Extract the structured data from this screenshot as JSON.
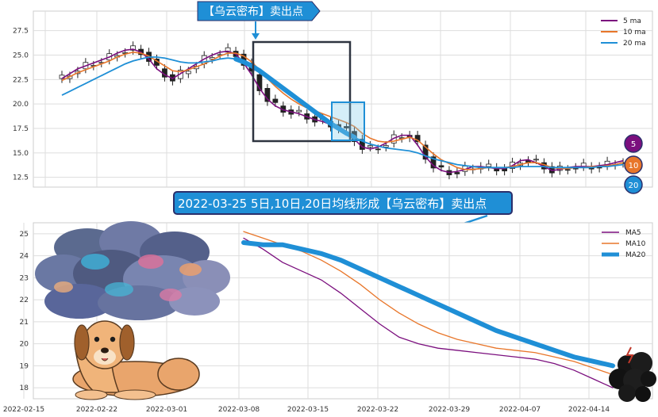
{
  "colors": {
    "ma5": "#7b0f7e",
    "ma10": "#e8762a",
    "ma20": "#1f8fd6",
    "candle_up": "#ffffff",
    "candle_down": "#222222",
    "callout_bg": "#1f8fd6",
    "callout_border": "#2b2f6b",
    "grid": "#dddddd"
  },
  "callouts": {
    "top_label": "【乌云密布】卖出点",
    "middle_label": "2022-03-25 5日,10日,20日均线形成【乌云密布】卖出点"
  },
  "badges": [
    "5",
    "10",
    "20"
  ],
  "icons": {
    "storm_cloud": "storm-cloud-icon",
    "dog": "dog-icon",
    "dark_cloud": "dark-cloud-icon"
  },
  "chart_data": [
    {
      "type": "candlestick",
      "title": "",
      "y_ticks": [
        "12.5",
        "15.0",
        "17.5",
        "20.0",
        "22.5",
        "25.0",
        "27.5"
      ],
      "ylim": [
        11.5,
        29.5
      ],
      "grid": true,
      "legend_placement": "top-right",
      "legend": [
        "5 ma",
        "10 ma",
        "20 ma"
      ],
      "series": [
        {
          "name": "5 ma",
          "values": [
            22.6,
            23.1,
            23.6,
            23.9,
            24.2,
            24.5,
            24.8,
            25.2,
            25.5,
            25.6,
            25.3,
            24.6,
            23.6,
            23.0,
            22.6,
            23.1,
            23.6,
            24.1,
            24.6,
            25.0,
            25.3,
            25.4,
            25.1,
            24.2,
            23.0,
            21.6,
            20.5,
            19.8,
            19.4,
            19.2,
            19.0,
            18.7,
            18.4,
            18.2,
            17.9,
            17.7,
            17.2,
            16.4,
            15.6,
            15.4,
            15.6,
            16.0,
            16.5,
            16.8,
            16.8,
            15.8,
            14.6,
            13.7,
            13.2,
            13.0,
            13.1,
            13.3,
            13.6,
            13.6,
            13.5,
            13.4,
            13.4,
            13.7,
            14.2,
            14.3,
            14.0,
            13.6,
            13.2,
            13.3,
            13.5,
            13.6,
            13.6,
            13.6,
            13.7,
            13.8,
            14.0,
            14.2
          ]
        },
        {
          "name": "10 ma",
          "values": [
            22.4,
            22.8,
            23.2,
            23.5,
            23.8,
            24.1,
            24.4,
            24.8,
            25.1,
            25.3,
            25.2,
            24.9,
            24.4,
            23.9,
            23.4,
            23.3,
            23.5,
            23.8,
            24.1,
            24.5,
            24.9,
            25.2,
            25.2,
            24.9,
            24.3,
            23.5,
            22.6,
            21.8,
            21.1,
            20.5,
            20.0,
            19.6,
            19.3,
            19.0,
            18.7,
            18.4,
            18.1,
            17.7,
            17.0,
            16.5,
            16.2,
            16.1,
            16.2,
            16.4,
            16.6,
            16.3,
            15.6,
            14.9,
            14.3,
            13.9,
            13.5,
            13.3,
            13.3,
            13.4,
            13.5,
            13.5,
            13.5,
            13.6,
            13.8,
            14.0,
            14.0,
            13.8,
            13.5,
            13.4,
            13.4,
            13.5,
            13.5,
            13.6,
            13.6,
            13.7,
            13.8,
            14.0
          ]
        },
        {
          "name": "20 ma",
          "values": [
            20.9,
            21.3,
            21.7,
            22.1,
            22.5,
            22.9,
            23.3,
            23.7,
            24.1,
            24.4,
            24.6,
            24.8,
            24.8,
            24.7,
            24.5,
            24.3,
            24.2,
            24.2,
            24.3,
            24.4,
            24.6,
            24.7,
            24.6,
            24.3,
            23.9,
            23.4,
            22.8,
            22.2,
            21.6,
            21.0,
            20.4,
            19.8,
            19.2,
            18.6,
            18.0,
            17.5,
            17.0,
            16.6,
            16.2,
            15.9,
            15.7,
            15.5,
            15.4,
            15.3,
            15.2,
            15.0,
            14.7,
            14.4,
            14.2,
            14.0,
            13.8,
            13.7,
            13.6,
            13.5,
            13.5,
            13.5,
            13.5,
            13.5,
            13.6,
            13.6,
            13.6,
            13.6,
            13.5,
            13.5,
            13.5,
            13.5,
            13.5,
            13.5,
            13.6,
            13.6,
            13.7,
            13.8
          ]
        }
      ]
    },
    {
      "type": "line",
      "title": "",
      "x_ticks": [
        "2022-02-15",
        "2022-02-22",
        "2022-03-01",
        "2022-03-08",
        "2022-03-15",
        "2022-03-22",
        "2022-03-29",
        "2022-04-07",
        "2022-04-14"
      ],
      "y_ticks": [
        "18",
        "19",
        "20",
        "21",
        "22",
        "23",
        "24",
        "25"
      ],
      "ylim": [
        17.5,
        25.5
      ],
      "grid": true,
      "legend_placement": "top-right",
      "legend": [
        "MA5",
        "MA10",
        "MA20"
      ],
      "series": [
        {
          "name": "MA5",
          "x": [
            "2022-03-08",
            "2022-03-10",
            "2022-03-12",
            "2022-03-14",
            "2022-03-16",
            "2022-03-18",
            "2022-03-20",
            "2022-03-22",
            "2022-03-24",
            "2022-03-26",
            "2022-03-28",
            "2022-03-30",
            "2022-04-01",
            "2022-04-03",
            "2022-04-05",
            "2022-04-07",
            "2022-04-09",
            "2022-04-11",
            "2022-04-13",
            "2022-04-15"
          ],
          "values": [
            24.8,
            24.3,
            23.7,
            23.3,
            22.9,
            22.3,
            21.6,
            20.9,
            20.3,
            20.0,
            19.8,
            19.7,
            19.6,
            19.5,
            19.4,
            19.3,
            19.1,
            18.8,
            18.4,
            18.0
          ]
        },
        {
          "name": "MA10",
          "x": [
            "2022-03-08",
            "2022-03-10",
            "2022-03-12",
            "2022-03-14",
            "2022-03-16",
            "2022-03-18",
            "2022-03-20",
            "2022-03-22",
            "2022-03-24",
            "2022-03-26",
            "2022-03-28",
            "2022-03-30",
            "2022-04-01",
            "2022-04-03",
            "2022-04-05",
            "2022-04-07",
            "2022-04-09",
            "2022-04-11",
            "2022-04-13",
            "2022-04-15"
          ],
          "values": [
            25.1,
            24.8,
            24.5,
            24.2,
            23.8,
            23.3,
            22.7,
            22.0,
            21.4,
            20.9,
            20.5,
            20.2,
            20.0,
            19.8,
            19.7,
            19.6,
            19.4,
            19.2,
            18.9,
            18.6
          ]
        },
        {
          "name": "MA20",
          "x": [
            "2022-03-08",
            "2022-03-10",
            "2022-03-12",
            "2022-03-14",
            "2022-03-16",
            "2022-03-18",
            "2022-03-20",
            "2022-03-22",
            "2022-03-24",
            "2022-03-26",
            "2022-03-28",
            "2022-03-30",
            "2022-04-01",
            "2022-04-03",
            "2022-04-05",
            "2022-04-07",
            "2022-04-09",
            "2022-04-11",
            "2022-04-13",
            "2022-04-15"
          ],
          "values": [
            24.6,
            24.5,
            24.5,
            24.3,
            24.1,
            23.8,
            23.4,
            23.0,
            22.6,
            22.2,
            21.8,
            21.4,
            21.0,
            20.6,
            20.3,
            20.0,
            19.7,
            19.4,
            19.2,
            19.0
          ]
        }
      ]
    }
  ]
}
